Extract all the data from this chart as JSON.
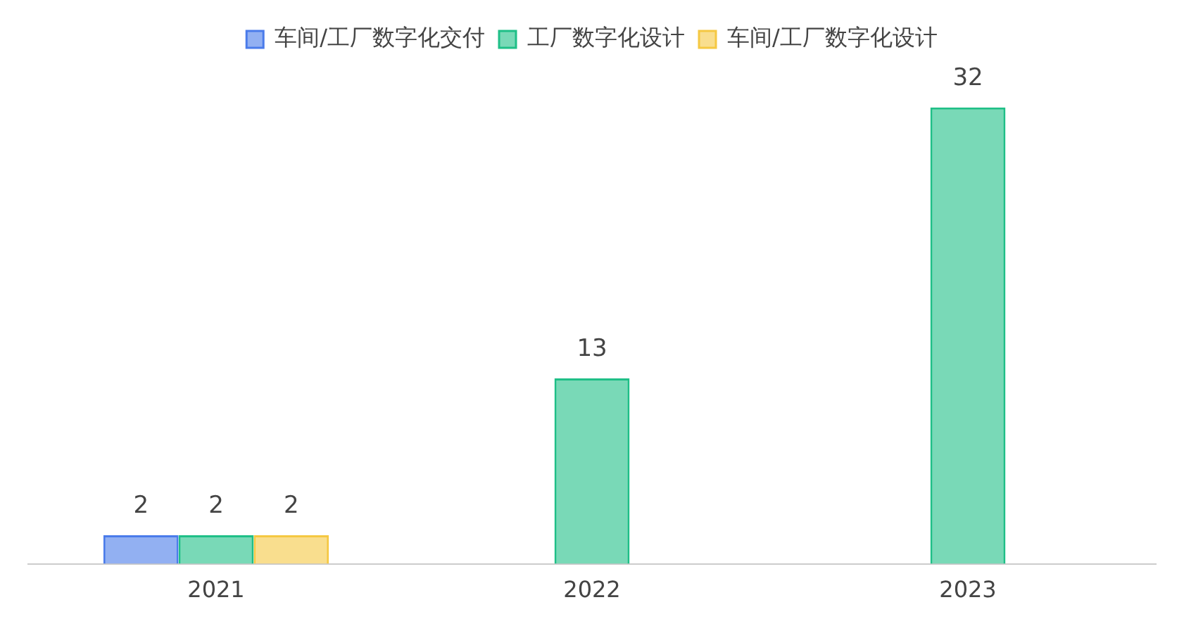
{
  "chart_data": {
    "type": "bar",
    "categories": [
      "2021",
      "2022",
      "2023"
    ],
    "series": [
      {
        "name": "车间/工厂数字化交付",
        "color": "#4a7bea",
        "values": [
          2,
          null,
          null
        ]
      },
      {
        "name": "工厂数字化设计",
        "color": "#1fbf87",
        "values": [
          2,
          13,
          32
        ]
      },
      {
        "name": "车间/工厂数字化设计",
        "color": "#f5c842",
        "values": [
          2,
          null,
          null
        ]
      }
    ],
    "data_labels": true,
    "legend": "top",
    "grid": false,
    "tick_labels": "x"
  }
}
